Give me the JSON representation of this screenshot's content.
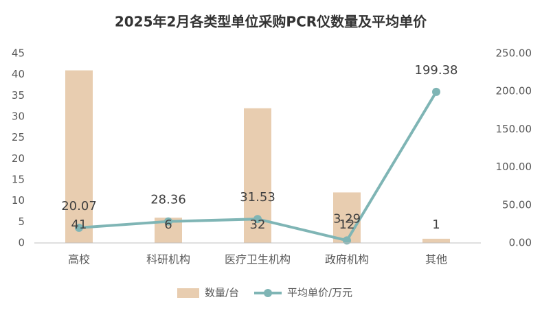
{
  "chart_data": {
    "type": "combo",
    "title": "2025年2月各类型单位采购PCR仪数量及平均单价",
    "categories": [
      "高校",
      "科研机构",
      "医疗卫生机构",
      "政府机构",
      "其他"
    ],
    "series": [
      {
        "name": "数量/台",
        "type": "bar",
        "color": "#e8cdb0",
        "values": [
          41,
          6,
          32,
          12,
          1
        ]
      },
      {
        "name": "平均单价/万元",
        "type": "line",
        "axis": "y2",
        "color": "#7fb5b5",
        "values": [
          20.07,
          28.36,
          31.53,
          3.29,
          199.38
        ]
      }
    ],
    "ylim": [
      0,
      45
    ],
    "yticks": [
      0,
      5,
      10,
      15,
      20,
      25,
      30,
      35,
      40,
      45
    ],
    "y2lim": [
      0,
      250
    ],
    "y2ticks": [
      {
        "value": 0,
        "label": "0.00"
      },
      {
        "value": 50,
        "label": "50.00"
      },
      {
        "value": 100,
        "label": "100.00"
      },
      {
        "value": 150,
        "label": "150.00"
      },
      {
        "value": 200,
        "label": "200.00"
      },
      {
        "value": 250,
        "label": "250.00"
      }
    ],
    "grid": false,
    "legend": "bottom"
  }
}
